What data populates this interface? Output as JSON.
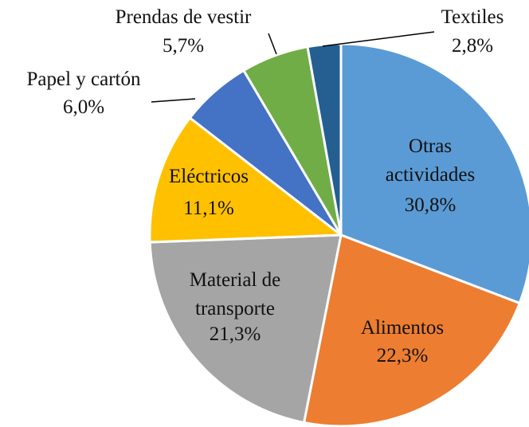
{
  "chart_data": {
    "type": "pie",
    "categories": [
      "Otras actividades",
      "Alimentos",
      "Material de transporte",
      "Eléctricos",
      "Papel y cartón",
      "Prendas de vestir",
      "Textiles"
    ],
    "values": [
      30.8,
      22.3,
      21.3,
      11.1,
      6.0,
      5.7,
      2.8
    ],
    "value_labels": [
      "30,8%",
      "22,3%",
      "21,3%",
      "11,1%",
      "6,0%",
      "5,7%",
      "2,8%"
    ],
    "colors": [
      "#5b9bd5",
      "#ed7d31",
      "#a5a5a5",
      "#ffc000",
      "#4472c4",
      "#70ad47",
      "#255e91"
    ]
  }
}
